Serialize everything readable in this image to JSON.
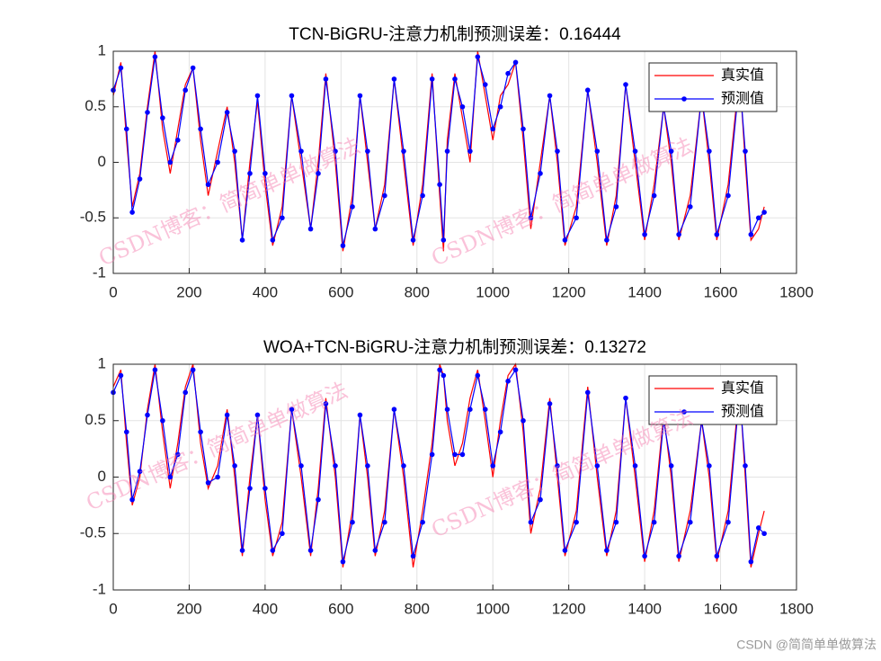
{
  "chart_data": [
    {
      "type": "line",
      "title": "TCN-BiGRU-注意力机制预测误差：0.16444",
      "x": [
        0,
        20,
        35,
        50,
        70,
        90,
        110,
        130,
        150,
        170,
        190,
        210,
        230,
        250,
        275,
        300,
        320,
        340,
        360,
        380,
        400,
        420,
        445,
        470,
        495,
        520,
        540,
        560,
        585,
        605,
        630,
        650,
        670,
        690,
        715,
        740,
        765,
        790,
        815,
        840,
        860,
        870,
        880,
        900,
        920,
        940,
        960,
        980,
        1000,
        1020,
        1040,
        1060,
        1080,
        1100,
        1125,
        1150,
        1170,
        1190,
        1220,
        1250,
        1275,
        1300,
        1325,
        1350,
        1375,
        1400,
        1425,
        1450,
        1470,
        1490,
        1520,
        1550,
        1570,
        1590,
        1620,
        1650,
        1665,
        1680,
        1700,
        1715
      ],
      "series": [
        {
          "name": "真实值",
          "color": "#ff0000",
          "marker": "none",
          "values": [
            0.6,
            0.9,
            0.2,
            -0.4,
            -0.1,
            0.5,
            1.0,
            0.3,
            -0.1,
            0.3,
            0.7,
            0.85,
            0.2,
            -0.3,
            0.1,
            0.5,
            0.0,
            -0.7,
            0.0,
            0.55,
            -0.2,
            -0.75,
            -0.4,
            0.6,
            0.0,
            -0.6,
            0.0,
            0.8,
            0.0,
            -0.8,
            -0.3,
            0.6,
            0.0,
            -0.6,
            -0.2,
            0.75,
            0.0,
            -0.75,
            -0.2,
            0.8,
            -0.3,
            -0.8,
            0.2,
            0.8,
            0.4,
            0.0,
            1.0,
            0.6,
            0.2,
            0.6,
            0.7,
            0.9,
            0.2,
            -0.6,
            0.0,
            0.6,
            0.0,
            -0.75,
            -0.4,
            0.65,
            0.0,
            -0.75,
            -0.3,
            0.7,
            0.0,
            -0.7,
            -0.2,
            0.5,
            0.0,
            -0.7,
            -0.3,
            0.6,
            0.0,
            -0.7,
            -0.2,
            0.8,
            0.0,
            -0.7,
            -0.6,
            -0.4
          ]
        },
        {
          "name": "预测值",
          "color": "#0000ff",
          "marker": "circle",
          "values": [
            0.65,
            0.85,
            0.3,
            -0.45,
            -0.15,
            0.45,
            0.95,
            0.4,
            0.0,
            0.2,
            0.65,
            0.85,
            0.3,
            -0.2,
            0.0,
            0.45,
            0.1,
            -0.7,
            -0.1,
            0.6,
            -0.1,
            -0.7,
            -0.5,
            0.6,
            0.1,
            -0.6,
            -0.1,
            0.75,
            0.1,
            -0.75,
            -0.4,
            0.6,
            0.1,
            -0.6,
            -0.3,
            0.75,
            0.1,
            -0.7,
            -0.3,
            0.75,
            -0.2,
            -0.7,
            0.1,
            0.75,
            0.5,
            0.1,
            0.95,
            0.7,
            0.3,
            0.5,
            0.8,
            0.9,
            0.3,
            -0.5,
            -0.1,
            0.6,
            0.1,
            -0.7,
            -0.5,
            0.65,
            0.1,
            -0.7,
            -0.4,
            0.7,
            0.1,
            -0.65,
            -0.3,
            0.5,
            0.1,
            -0.65,
            -0.4,
            0.6,
            0.1,
            -0.65,
            -0.3,
            0.75,
            0.1,
            -0.65,
            -0.5,
            -0.45
          ]
        }
      ],
      "xlim": [
        0,
        1800
      ],
      "ylim": [
        -1,
        1
      ],
      "xticks": [
        0,
        200,
        400,
        600,
        800,
        1000,
        1200,
        1400,
        1600,
        1800
      ],
      "yticks": [
        -1,
        -0.5,
        0,
        0.5,
        1
      ],
      "grid": true,
      "legend": "upper-right"
    },
    {
      "type": "line",
      "title": "WOA+TCN-BiGRU-注意力机制预测误差：0.13272",
      "x": [
        0,
        20,
        35,
        50,
        70,
        90,
        110,
        130,
        150,
        170,
        190,
        210,
        230,
        250,
        275,
        300,
        320,
        340,
        360,
        380,
        400,
        420,
        445,
        470,
        495,
        520,
        540,
        560,
        585,
        605,
        630,
        650,
        670,
        690,
        715,
        740,
        765,
        790,
        815,
        840,
        860,
        870,
        880,
        900,
        920,
        940,
        960,
        980,
        1000,
        1020,
        1040,
        1060,
        1080,
        1100,
        1125,
        1150,
        1170,
        1190,
        1220,
        1250,
        1275,
        1300,
        1325,
        1350,
        1375,
        1400,
        1425,
        1450,
        1470,
        1490,
        1520,
        1550,
        1570,
        1590,
        1620,
        1650,
        1665,
        1680,
        1700,
        1715
      ],
      "series": [
        {
          "name": "真实值",
          "color": "#ff0000",
          "marker": "none",
          "values": [
            0.8,
            0.95,
            0.3,
            -0.25,
            0.0,
            0.6,
            1.0,
            0.4,
            -0.1,
            0.3,
            0.8,
            1.0,
            0.3,
            -0.1,
            0.1,
            0.6,
            0.0,
            -0.7,
            0.0,
            0.55,
            -0.2,
            -0.7,
            -0.4,
            0.6,
            0.0,
            -0.7,
            -0.1,
            0.7,
            0.0,
            -0.8,
            -0.3,
            0.55,
            0.0,
            -0.7,
            -0.3,
            0.6,
            0.0,
            -0.8,
            -0.3,
            0.3,
            1.0,
            0.9,
            0.5,
            0.1,
            0.3,
            0.7,
            0.95,
            0.5,
            0.0,
            0.5,
            0.9,
            1.0,
            0.4,
            -0.5,
            -0.1,
            0.7,
            0.0,
            -0.7,
            -0.3,
            0.8,
            0.0,
            -0.7,
            -0.3,
            0.7,
            0.0,
            -0.75,
            -0.3,
            0.55,
            0.0,
            -0.75,
            -0.3,
            0.5,
            0.0,
            -0.75,
            -0.3,
            0.8,
            0.0,
            -0.8,
            -0.5,
            -0.3
          ]
        },
        {
          "name": "预测值",
          "color": "#0000ff",
          "marker": "circle",
          "values": [
            0.75,
            0.9,
            0.4,
            -0.2,
            0.05,
            0.55,
            0.95,
            0.5,
            0.0,
            0.2,
            0.75,
            0.95,
            0.4,
            -0.05,
            0.0,
            0.55,
            0.1,
            -0.65,
            -0.1,
            0.55,
            -0.1,
            -0.65,
            -0.5,
            0.6,
            0.1,
            -0.65,
            -0.2,
            0.65,
            0.1,
            -0.75,
            -0.4,
            0.55,
            0.1,
            -0.65,
            -0.4,
            0.6,
            0.1,
            -0.7,
            -0.4,
            0.2,
            0.95,
            0.9,
            0.6,
            0.2,
            0.2,
            0.6,
            0.9,
            0.6,
            0.1,
            0.4,
            0.85,
            0.95,
            0.5,
            -0.4,
            -0.2,
            0.65,
            0.1,
            -0.65,
            -0.4,
            0.75,
            0.1,
            -0.65,
            -0.4,
            0.7,
            0.1,
            -0.7,
            -0.4,
            0.5,
            0.1,
            -0.7,
            -0.4,
            0.5,
            0.1,
            -0.7,
            -0.4,
            0.75,
            0.1,
            -0.75,
            -0.45,
            -0.5
          ]
        }
      ],
      "xlim": [
        0,
        1800
      ],
      "ylim": [
        -1,
        1
      ],
      "xticks": [
        0,
        200,
        400,
        600,
        800,
        1000,
        1200,
        1400,
        1600,
        1800
      ],
      "yticks": [
        -1,
        -0.5,
        0,
        0.5,
        1
      ],
      "grid": true,
      "legend": "upper-right"
    }
  ],
  "watermarks": [
    "CSDN博客：简简单单做算法",
    "CSDN博客：简简单单做算法",
    "CSDN博客：简简单单做算法",
    "CSDN博客：简简单单做算法"
  ],
  "footer": "CSDN @简简单单做算法"
}
